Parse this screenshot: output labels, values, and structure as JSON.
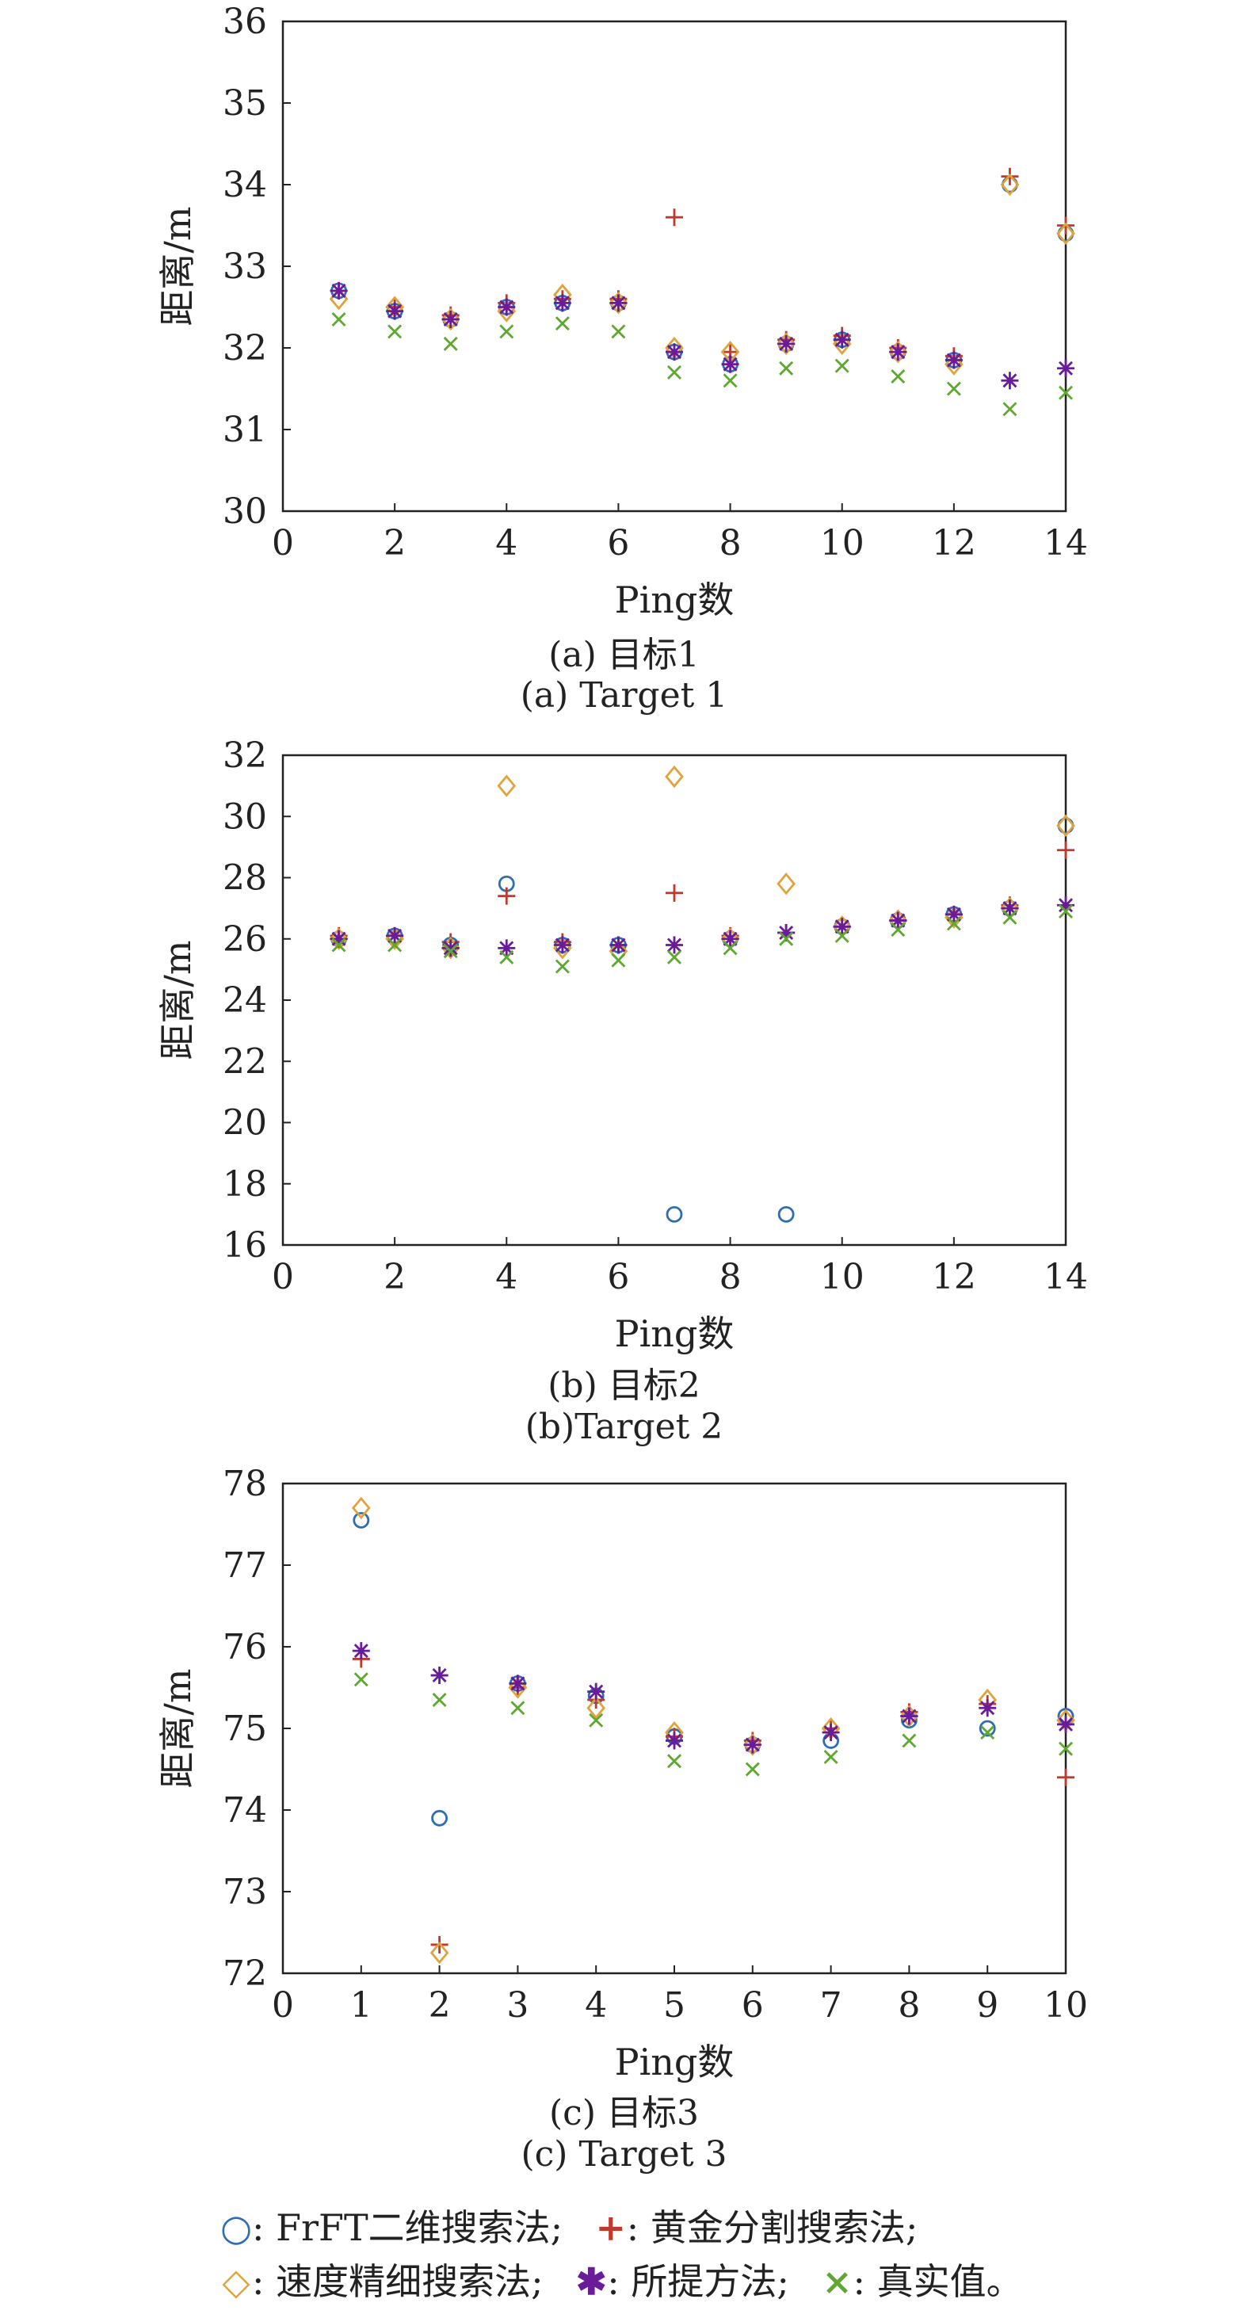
{
  "chart_data": [
    {
      "type": "scatter",
      "title": "",
      "xlabel": "Ping数",
      "ylabel": "距离/m",
      "xlim": [
        0,
        14
      ],
      "ylim": [
        30,
        36
      ],
      "xticks": [
        0,
        2,
        4,
        6,
        8,
        10,
        12,
        14
      ],
      "yticks": [
        30,
        31,
        32,
        33,
        34,
        35,
        36
      ],
      "grid": false,
      "caption_cn": "(a) 目标1",
      "caption_en": "(a) Target 1",
      "series": [
        {
          "name": "FrFT二维搜索法",
          "marker": "circle",
          "color": "#2e6db4",
          "x": [
            1,
            2,
            3,
            4,
            5,
            6,
            7,
            8,
            9,
            10,
            11,
            12,
            13,
            14
          ],
          "y": [
            32.7,
            32.45,
            32.35,
            32.5,
            32.55,
            32.55,
            31.95,
            31.8,
            32.05,
            32.1,
            31.95,
            31.85,
            34.0,
            33.4
          ]
        },
        {
          "name": "黄金分割搜索法",
          "marker": "plus",
          "color": "#c0392b",
          "x": [
            1,
            2,
            3,
            4,
            5,
            6,
            7,
            8,
            9,
            10,
            11,
            12,
            13,
            14
          ],
          "y": [
            32.7,
            32.5,
            32.4,
            32.55,
            32.6,
            32.6,
            33.6,
            31.95,
            32.1,
            32.15,
            32.0,
            31.9,
            34.1,
            33.5
          ]
        },
        {
          "name": "速度精细搜索法",
          "marker": "diamond",
          "color": "#e0a23a",
          "x": [
            1,
            2,
            3,
            4,
            5,
            6,
            7,
            8,
            9,
            10,
            11,
            12,
            13,
            14
          ],
          "y": [
            32.6,
            32.5,
            32.35,
            32.45,
            32.65,
            32.55,
            32.0,
            31.95,
            32.05,
            32.05,
            31.95,
            31.8,
            34.0,
            33.4
          ]
        },
        {
          "name": "所提方法",
          "marker": "asterisk",
          "color": "#6a1b9a",
          "x": [
            1,
            2,
            3,
            4,
            5,
            6,
            7,
            8,
            9,
            10,
            11,
            12,
            13,
            14
          ],
          "y": [
            32.7,
            32.45,
            32.35,
            32.5,
            32.55,
            32.55,
            31.95,
            31.8,
            32.05,
            32.1,
            31.95,
            31.85,
            31.6,
            31.75
          ]
        },
        {
          "name": "真实值",
          "marker": "x",
          "color": "#5fa82f",
          "x": [
            1,
            2,
            3,
            4,
            5,
            6,
            7,
            8,
            9,
            10,
            11,
            12,
            13,
            14
          ],
          "y": [
            32.35,
            32.2,
            32.05,
            32.2,
            32.3,
            32.2,
            31.7,
            31.6,
            31.75,
            31.78,
            31.65,
            31.5,
            31.25,
            31.45
          ]
        }
      ]
    },
    {
      "type": "scatter",
      "title": "",
      "xlabel": "Ping数",
      "ylabel": "距离/m",
      "xlim": [
        0,
        14
      ],
      "ylim": [
        16,
        32
      ],
      "xticks": [
        0,
        2,
        4,
        6,
        8,
        10,
        12,
        14
      ],
      "yticks": [
        16,
        18,
        20,
        22,
        24,
        26,
        28,
        30,
        32
      ],
      "grid": false,
      "caption_cn": "(b) 目标2",
      "caption_en": "(b)Target 2",
      "series": [
        {
          "name": "FrFT二维搜索法",
          "marker": "circle",
          "color": "#2e6db4",
          "x": [
            1,
            2,
            3,
            4,
            5,
            6,
            7,
            8,
            9,
            10,
            11,
            12,
            13,
            14
          ],
          "y": [
            26.0,
            26.1,
            25.8,
            27.8,
            25.8,
            25.8,
            17.0,
            26.0,
            17.0,
            26.4,
            26.6,
            26.8,
            27.0,
            29.7
          ]
        },
        {
          "name": "黄金分割搜索法",
          "marker": "plus",
          "color": "#c0392b",
          "x": [
            1,
            2,
            3,
            4,
            5,
            6,
            7,
            8,
            9,
            10,
            11,
            12,
            13,
            14
          ],
          "y": [
            26.1,
            26.1,
            25.9,
            27.4,
            25.9,
            25.8,
            27.5,
            26.1,
            26.2,
            26.4,
            26.6,
            26.8,
            27.1,
            28.9
          ]
        },
        {
          "name": "速度精细搜索法",
          "marker": "diamond",
          "color": "#e0a23a",
          "x": [
            1,
            2,
            3,
            4,
            5,
            6,
            7,
            8,
            9,
            10,
            11,
            12,
            13,
            14
          ],
          "y": [
            26.0,
            26.0,
            25.7,
            31.0,
            25.7,
            25.6,
            31.3,
            26.0,
            27.8,
            26.4,
            26.6,
            26.7,
            27.0,
            29.7
          ]
        },
        {
          "name": "所提方法",
          "marker": "asterisk",
          "color": "#6a1b9a",
          "x": [
            1,
            2,
            3,
            4,
            5,
            6,
            7,
            8,
            9,
            10,
            11,
            12,
            13,
            14
          ],
          "y": [
            26.0,
            26.1,
            25.7,
            25.7,
            25.8,
            25.8,
            25.8,
            26.0,
            26.2,
            26.4,
            26.6,
            26.8,
            27.0,
            27.1
          ]
        },
        {
          "name": "真实值",
          "marker": "x",
          "color": "#5fa82f",
          "x": [
            1,
            2,
            3,
            4,
            5,
            6,
            7,
            8,
            9,
            10,
            11,
            12,
            13,
            14
          ],
          "y": [
            25.8,
            25.8,
            25.6,
            25.4,
            25.1,
            25.3,
            25.4,
            25.7,
            26.0,
            26.1,
            26.3,
            26.5,
            26.7,
            26.9
          ]
        }
      ]
    },
    {
      "type": "scatter",
      "title": "",
      "xlabel": "Ping数",
      "ylabel": "距离/m",
      "xlim": [
        0,
        10
      ],
      "ylim": [
        72,
        78
      ],
      "xticks": [
        0,
        1,
        2,
        3,
        4,
        5,
        6,
        7,
        8,
        9,
        10
      ],
      "yticks": [
        72,
        73,
        74,
        75,
        76,
        77,
        78
      ],
      "grid": false,
      "caption_cn": "(c) 目标3",
      "caption_en": "(c) Target 3",
      "series": [
        {
          "name": "FrFT二维搜索法",
          "marker": "circle",
          "color": "#2e6db4",
          "x": [
            1,
            2,
            3,
            4,
            5,
            6,
            7,
            8,
            9,
            10
          ],
          "y": [
            77.55,
            73.9,
            75.55,
            75.4,
            74.9,
            74.8,
            74.85,
            75.1,
            75.0,
            75.15
          ]
        },
        {
          "name": "黄金分割搜索法",
          "marker": "plus",
          "color": "#c0392b",
          "x": [
            1,
            2,
            3,
            4,
            5,
            6,
            7,
            8,
            9,
            10
          ],
          "y": [
            75.85,
            72.35,
            75.5,
            75.35,
            74.9,
            74.85,
            75.0,
            75.2,
            75.3,
            74.4
          ]
        },
        {
          "name": "速度精细搜索法",
          "marker": "diamond",
          "color": "#e0a23a",
          "x": [
            1,
            2,
            3,
            4,
            5,
            6,
            7,
            8,
            9,
            10
          ],
          "y": [
            77.7,
            72.25,
            75.5,
            75.25,
            74.95,
            74.8,
            75.0,
            75.15,
            75.35,
            75.1
          ]
        },
        {
          "name": "所提方法",
          "marker": "asterisk",
          "color": "#6a1b9a",
          "x": [
            1,
            2,
            3,
            4,
            5,
            6,
            7,
            8,
            9,
            10
          ],
          "y": [
            75.95,
            75.65,
            75.55,
            75.45,
            74.85,
            74.8,
            74.95,
            75.15,
            75.25,
            75.05
          ]
        },
        {
          "name": "真实值",
          "marker": "x",
          "color": "#5fa82f",
          "x": [
            1,
            2,
            3,
            4,
            5,
            6,
            7,
            8,
            9,
            10
          ],
          "y": [
            75.6,
            75.35,
            75.25,
            75.1,
            74.6,
            74.5,
            74.65,
            74.85,
            74.95,
            74.75
          ]
        }
      ]
    }
  ],
  "legend": {
    "line1": [
      {
        "marker": "circle",
        "color": "#2e6db4",
        "symbol": "○",
        "label": ": FrFT二维搜索法;"
      },
      {
        "marker": "plus",
        "color": "#c0392b",
        "symbol": "+",
        "label": ":  黄金分割搜索法;"
      }
    ],
    "line2": [
      {
        "marker": "diamond",
        "color": "#e0a23a",
        "symbol": "◇",
        "label": ": 速度精细搜索法;"
      },
      {
        "marker": "asterisk",
        "color": "#6a1b9a",
        "symbol": "✱",
        "label": ": 所提方法;"
      },
      {
        "marker": "x",
        "color": "#5fa82f",
        "symbol": "×",
        "label": ": 真实值。"
      }
    ]
  }
}
